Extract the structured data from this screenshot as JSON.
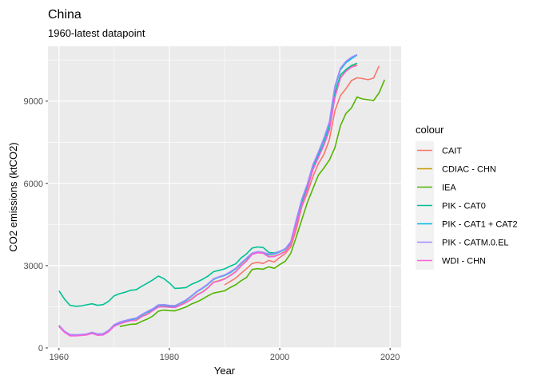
{
  "chart_data": {
    "type": "line",
    "title": "China",
    "subtitle": "1960-latest datapoint",
    "xlabel": "Year",
    "ylabel": "CO2 emissions (ktCO2)",
    "xlim": [
      1958,
      2022
    ],
    "ylim": [
      0,
      11000
    ],
    "x_ticks": [
      1960,
      1980,
      2000,
      2020
    ],
    "y_ticks": [
      0,
      3000,
      6000,
      9000
    ],
    "x_tick_labels": [
      "1960",
      "1980",
      "2000",
      "2020"
    ],
    "y_tick_labels": [
      "0",
      "3000",
      "6000",
      "9000"
    ],
    "grid": true,
    "legend": {
      "title": "colour",
      "position": "right"
    },
    "series": [
      {
        "name": "CAIT",
        "color": "#F8766D",
        "x": [
          1990,
          1991,
          1992,
          1993,
          1994,
          1995,
          1996,
          1997,
          1998,
          1999,
          2000,
          2001,
          2002,
          2003,
          2004,
          2005,
          2006,
          2007,
          2008,
          2009,
          2010,
          2011,
          2012,
          2013,
          2014,
          2015,
          2016,
          2017,
          2018
        ],
        "y": [
          2300,
          2420,
          2540,
          2720,
          2890,
          3080,
          3120,
          3080,
          3190,
          3130,
          3300,
          3440,
          3680,
          4330,
          5150,
          5650,
          6240,
          6720,
          7050,
          7600,
          8650,
          9200,
          9450,
          9750,
          9850,
          9820,
          9780,
          9840,
          10280
        ]
      },
      {
        "name": "CDIAC - CHN",
        "color": "#C49A00",
        "x": [
          1960,
          1961,
          1962,
          1963,
          1964,
          1965,
          1966,
          1967,
          1968,
          1969,
          1970,
          1971,
          1972,
          1973,
          1974,
          1975,
          1976,
          1977,
          1978,
          1979,
          1980,
          1981,
          1982,
          1983,
          1984,
          1985,
          1986,
          1987,
          1988,
          1989,
          1990,
          1991,
          1992,
          1993,
          1994,
          1995,
          1996,
          1997,
          1998,
          1999,
          2000,
          2001,
          2002,
          2003,
          2004,
          2005,
          2006,
          2007,
          2008,
          2009,
          2010,
          2011,
          2012,
          2013,
          2014
        ],
        "y": [
          790,
          580,
          450,
          450,
          460,
          490,
          550,
          470,
          480,
          600,
          800,
          890,
          950,
          1000,
          1010,
          1150,
          1230,
          1370,
          1500,
          1510,
          1490,
          1480,
          1560,
          1660,
          1780,
          1940,
          2040,
          2200,
          2400,
          2450,
          2520,
          2640,
          2780,
          3000,
          3180,
          3420,
          3480,
          3460,
          3330,
          3340,
          3420,
          3520,
          3780,
          4500,
          5200,
          5800,
          6500,
          6950,
          7400,
          7950,
          9150,
          9850,
          10100,
          10250,
          10320
        ]
      },
      {
        "name": "IEA",
        "color": "#53B400",
        "x": [
          1971,
          1972,
          1973,
          1974,
          1975,
          1976,
          1977,
          1978,
          1979,
          1980,
          1981,
          1982,
          1983,
          1984,
          1985,
          1986,
          1987,
          1988,
          1989,
          1990,
          1991,
          1992,
          1993,
          1994,
          1995,
          1996,
          1997,
          1998,
          1999,
          2000,
          2001,
          2002,
          2003,
          2004,
          2005,
          2006,
          2007,
          2008,
          2009,
          2010,
          2011,
          2012,
          2013,
          2014,
          2015,
          2016,
          2017,
          2018,
          2019
        ],
        "y": [
          780,
          820,
          860,
          870,
          970,
          1050,
          1160,
          1340,
          1380,
          1360,
          1350,
          1420,
          1490,
          1600,
          1680,
          1780,
          1900,
          2000,
          2040,
          2080,
          2200,
          2300,
          2450,
          2570,
          2860,
          2890,
          2870,
          2960,
          2900,
          3040,
          3160,
          3450,
          4050,
          4680,
          5300,
          5800,
          6300,
          6560,
          6850,
          7300,
          8100,
          8550,
          8750,
          9150,
          9080,
          9050,
          9020,
          9300,
          9780
        ]
      },
      {
        "name": "PIK - CAT0",
        "color": "#00C094",
        "x": [
          1960,
          1961,
          1962,
          1963,
          1964,
          1965,
          1966,
          1967,
          1968,
          1969,
          1970,
          1971,
          1972,
          1973,
          1974,
          1975,
          1976,
          1977,
          1978,
          1979,
          1980,
          1981,
          1982,
          1983,
          1984,
          1985,
          1986,
          1987,
          1988,
          1989,
          1990,
          1991,
          1992,
          1993,
          1994,
          1995,
          1996,
          1997,
          1998,
          1999,
          2000,
          2001,
          2002,
          2003,
          2004,
          2005,
          2006,
          2007,
          2008,
          2009,
          2010,
          2011,
          2012,
          2013,
          2014
        ],
        "y": [
          2080,
          1780,
          1550,
          1520,
          1530,
          1570,
          1610,
          1550,
          1580,
          1700,
          1900,
          1980,
          2030,
          2100,
          2120,
          2250,
          2360,
          2480,
          2620,
          2530,
          2370,
          2170,
          2180,
          2200,
          2320,
          2400,
          2500,
          2620,
          2780,
          2830,
          2880,
          2980,
          3060,
          3280,
          3430,
          3640,
          3680,
          3660,
          3480,
          3460,
          3520,
          3610,
          3850,
          4550,
          5300,
          5880,
          6550,
          7000,
          7450,
          8050,
          9300,
          9950,
          10150,
          10300,
          10380
        ]
      },
      {
        "name": "PIK - CAT1 + CAT2",
        "color": "#00B6EB",
        "x": [
          1960,
          1961,
          1962,
          1963,
          1964,
          1965,
          1966,
          1967,
          1968,
          1969,
          1970,
          1971,
          1972,
          1973,
          1974,
          1975,
          1976,
          1977,
          1978,
          1979,
          1980,
          1981,
          1982,
          1983,
          1984,
          1985,
          1986,
          1987,
          1988,
          1989,
          1990,
          1991,
          1992,
          1993,
          1994,
          1995,
          1996,
          1997,
          1998,
          1999,
          2000,
          2001,
          2002,
          2003,
          2004,
          2005,
          2006,
          2007,
          2008,
          2009,
          2010,
          2011,
          2012,
          2013,
          2014
        ],
        "y": [
          790,
          580,
          460,
          450,
          460,
          480,
          540,
          480,
          490,
          620,
          820,
          920,
          980,
          1020,
          1070,
          1200,
          1300,
          1400,
          1550,
          1560,
          1530,
          1520,
          1620,
          1720,
          1880,
          2050,
          2170,
          2320,
          2500,
          2580,
          2640,
          2740,
          2880,
          3080,
          3260,
          3440,
          3490,
          3470,
          3400,
          3420,
          3500,
          3600,
          3850,
          4650,
          5400,
          5950,
          6650,
          7100,
          7600,
          8200,
          9500,
          10150,
          10400,
          10550,
          10680
        ]
      },
      {
        "name": "PIK - CATM.0.EL",
        "color": "#A58AFF",
        "x": [
          1960,
          1961,
          1962,
          1963,
          1964,
          1965,
          1966,
          1967,
          1968,
          1969,
          1970,
          1971,
          1972,
          1973,
          1974,
          1975,
          1976,
          1977,
          1978,
          1979,
          1980,
          1981,
          1982,
          1983,
          1984,
          1985,
          1986,
          1987,
          1988,
          1989,
          1990,
          1991,
          1992,
          1993,
          1994,
          1995,
          1996,
          1997,
          1998,
          1999,
          2000,
          2001,
          2002,
          2003,
          2004,
          2005,
          2006,
          2007,
          2008,
          2009,
          2010,
          2011,
          2012,
          2013,
          2014
        ],
        "y": [
          830,
          610,
          490,
          480,
          490,
          510,
          570,
          510,
          520,
          640,
          850,
          940,
          1000,
          1050,
          1090,
          1220,
          1330,
          1430,
          1570,
          1580,
          1550,
          1540,
          1640,
          1750,
          1900,
          2070,
          2190,
          2340,
          2520,
          2600,
          2660,
          2770,
          2900,
          3100,
          3280,
          3460,
          3510,
          3490,
          3420,
          3440,
          3520,
          3620,
          3880,
          4680,
          5430,
          5980,
          6680,
          7140,
          7650,
          8250,
          9550,
          10200,
          10450,
          10600,
          10700
        ]
      },
      {
        "name": "WDI - CHN",
        "color": "#FB61D7",
        "x": [
          1960,
          1961,
          1962,
          1963,
          1964,
          1965,
          1966,
          1967,
          1968,
          1969,
          1970,
          1971,
          1972,
          1973,
          1974,
          1975,
          1976,
          1977,
          1978,
          1979,
          1980,
          1981,
          1982,
          1983,
          1984,
          1985,
          1986,
          1987,
          1988,
          1989,
          1990,
          1991,
          1992,
          1993,
          1994,
          1995,
          1996,
          1997,
          1998,
          1999,
          2000,
          2001,
          2002,
          2003,
          2004,
          2005,
          2006,
          2007,
          2008,
          2009,
          2010,
          2011,
          2012,
          2013,
          2014
        ],
        "y": [
          780,
          570,
          440,
          440,
          450,
          470,
          530,
          460,
          470,
          590,
          790,
          880,
          940,
          990,
          1000,
          1140,
          1220,
          1360,
          1490,
          1500,
          1480,
          1470,
          1550,
          1650,
          1770,
          1930,
          2030,
          2190,
          2390,
          2440,
          2510,
          2630,
          2770,
          2990,
          3170,
          3410,
          3470,
          3450,
          3320,
          3330,
          3410,
          3510,
          3770,
          4490,
          5190,
          5790,
          6490,
          6940,
          7390,
          7940,
          9140,
          9840,
          10090,
          10240,
          10300
        ]
      }
    ]
  }
}
